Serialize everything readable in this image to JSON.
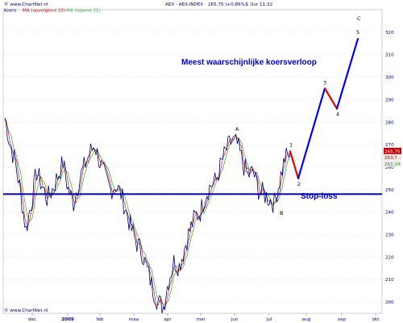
{
  "header": {
    "brand": "© www.ChartNet.nl",
    "legend": [
      {
        "name": "Koers",
        "color": "#000080"
      },
      {
        "name": "MA (opvolgend 10)",
        "color": "#cc0000"
      },
      {
        "name": "MA (lopend 21)",
        "color": "#33aa33"
      }
    ],
    "title": "AEX - AEX-INDEX",
    "quote": "265,75 (+0,86%)",
    "time": "1 Uur 11:32"
  },
  "footer_brand": "© www.ChartNet.nl",
  "chart_data": {
    "type": "line",
    "ylim": [
      195,
      330
    ],
    "yticks": [
      200,
      210,
      220,
      230,
      240,
      250,
      260,
      270,
      280,
      290,
      300,
      310,
      320
    ],
    "xtick_labels": [
      "dec",
      "2009",
      "feb",
      "maa",
      "apr",
      "mei",
      "jun",
      "jul",
      "aug",
      "sep",
      "okt"
    ],
    "price_labels": {
      "last": "265,75",
      "ma_a": "263,?",
      "ma_b": "261,24"
    },
    "series": [
      {
        "name": "Koers",
        "color": "#000080",
        "values": [
          282,
          270,
          262,
          248,
          232,
          244,
          258,
          252,
          246,
          250,
          256,
          262,
          250,
          244,
          254,
          260,
          266,
          270,
          262,
          255,
          250,
          252,
          248,
          240,
          232,
          226,
          222,
          214,
          206,
          200,
          198,
          210,
          218,
          216,
          224,
          232,
          238,
          240,
          248,
          252,
          254,
          262,
          268,
          272,
          270,
          262,
          256,
          258,
          250,
          248,
          246,
          244,
          254,
          264,
          266
        ]
      }
    ],
    "stop_loss": {
      "value": 248,
      "label": "Stop-loss"
    },
    "annotation": "Meest waarschijnlijke koersverloop",
    "wave_projection": {
      "points": [
        {
          "label": "1",
          "y": 267
        },
        {
          "label": "2",
          "y": 255
        },
        {
          "label": "3",
          "y": 295
        },
        {
          "label": "4",
          "y": 286
        },
        {
          "label": "5",
          "y": 317
        }
      ],
      "corrective_color": "#ee0000",
      "impulse_color": "#0000ff"
    },
    "wave_labels": [
      {
        "label": "A",
        "y": 272
      },
      {
        "label": "B",
        "y": 243
      },
      {
        "label": "C",
        "y": 322
      }
    ]
  }
}
